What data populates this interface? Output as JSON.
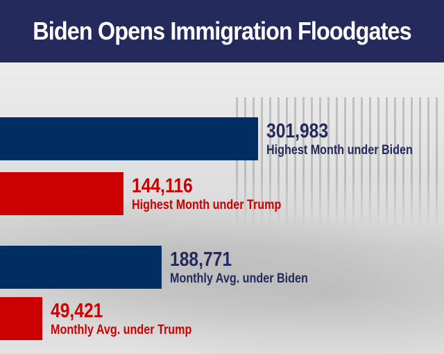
{
  "title": "Biden Opens Immigration Floodgates",
  "colors": {
    "biden": "#002d62",
    "trump": "#cc0000",
    "biden_text": "#252a5c",
    "trump_text": "#cc0000"
  },
  "chart_data": {
    "type": "bar",
    "orientation": "horizontal",
    "title": "Biden Opens Immigration Floodgates",
    "categories": [
      "Highest Month under Biden",
      "Highest Month under Trump",
      "Monthly Avg. under Biden",
      "Monthly Avg. under Trump"
    ],
    "values": [
      301983,
      144116,
      188771,
      49421
    ],
    "value_labels": [
      "301,983",
      "144,116",
      "188,771",
      "49,421"
    ],
    "series_colors": [
      "#002d62",
      "#cc0000",
      "#002d62",
      "#cc0000"
    ],
    "grid": false
  }
}
